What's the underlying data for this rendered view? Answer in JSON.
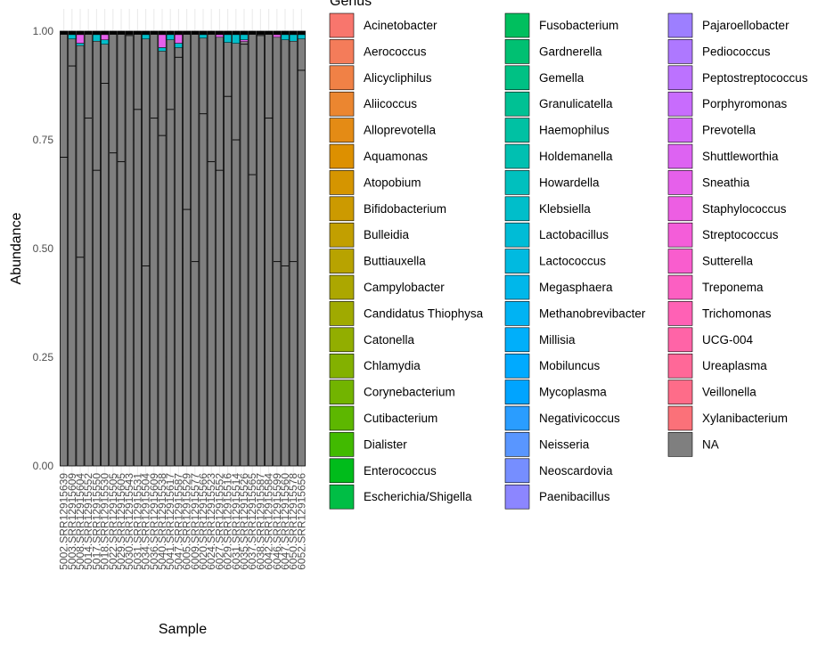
{
  "chart_data": {
    "type": "bar",
    "stacked": true,
    "xlabel": "Sample",
    "ylabel": "Abundance",
    "ylim": [
      0,
      1
    ],
    "yticks": [
      "0.00",
      "0.25",
      "0.50",
      "0.75",
      "1.00"
    ],
    "legend_title": "Genus",
    "legend_position": "right",
    "grid": true,
    "categories": [
      "5002.SRR12915639",
      "5003.SRR12915609",
      "5008.SRR12915604",
      "5014.SRR12915552",
      "5017.SRR12915550",
      "5018.SRR12915530",
      "5022.SRR12915505",
      "5029.SRR12915605",
      "5030.SRR12915543",
      "5031.SRR12915531",
      "5034.SRR12915504",
      "5036.SRR12915609",
      "5040.SRR12915538",
      "5041.SRR12915617",
      "5047.SRR12915587",
      "6005.SRR12915529",
      "6009.SRR12915577",
      "6020.SRR12915566",
      "6024.SRR12915523",
      "6027.SRR12915552",
      "6029.SRR12915516",
      "6031.SRR12915514",
      "6035.SRR12915526",
      "6037.SRR12915565",
      "6038.SRR12915587",
      "6042.SRR12915584",
      "6046.SRR12915599",
      "6047.SRR12915560",
      "6050.SRR12915578",
      "6052.SRR12915656"
    ],
    "na_values": [
      0.71,
      0.92,
      0.48,
      0.8,
      0.68,
      0.88,
      0.72,
      0.7,
      0.99,
      0.82,
      0.46,
      0.8,
      0.76,
      0.82,
      0.94,
      0.59,
      0.47,
      0.81,
      0.7,
      0.68,
      0.85,
      0.75,
      0.97,
      0.67,
      0.99,
      0.8,
      0.47,
      0.46,
      0.47,
      0.91
    ],
    "series": [
      {
        "name": "Acinetobacter",
        "color": "#F8766D"
      },
      {
        "name": "Aerococcus",
        "color": "#F47C5A"
      },
      {
        "name": "Alicycliphilus",
        "color": "#F08146"
      },
      {
        "name": "Aliicoccus",
        "color": "#EB8630"
      },
      {
        "name": "Alloprevotella",
        "color": "#E48B15"
      },
      {
        "name": "Aquamonas",
        "color": "#DD9000"
      },
      {
        "name": "Atopobium",
        "color": "#D59500"
      },
      {
        "name": "Bifidobacterium",
        "color": "#CC9A00"
      },
      {
        "name": "Bulleidia",
        "color": "#C29F00"
      },
      {
        "name": "Buttiauxella",
        "color": "#B8A300"
      },
      {
        "name": "Campylobacter",
        "color": "#ACA700"
      },
      {
        "name": "Candidatus Thiophysa",
        "color": "#A0AA00"
      },
      {
        "name": "Catonella",
        "color": "#92AE00"
      },
      {
        "name": "Chlamydia",
        "color": "#83B100"
      },
      {
        "name": "Corynebacterium",
        "color": "#72B400"
      },
      {
        "name": "Cutibacterium",
        "color": "#5DB700"
      },
      {
        "name": "Dialister",
        "color": "#41BA00"
      },
      {
        "name": "Enterococcus",
        "color": "#00BC1B"
      },
      {
        "name": "Escherichia/Shigella",
        "color": "#00BE45"
      },
      {
        "name": "Fusobacterium",
        "color": "#00BF5E"
      },
      {
        "name": "Gardnerella",
        "color": "#00C072"
      },
      {
        "name": "Gemella",
        "color": "#00C184"
      },
      {
        "name": "Granulicatella",
        "color": "#00C194"
      },
      {
        "name": "Haemophilus",
        "color": "#00C1A3"
      },
      {
        "name": "Holdemanella",
        "color": "#00C0B1"
      },
      {
        "name": "Howardella",
        "color": "#00C0BE"
      },
      {
        "name": "Klebsiella",
        "color": "#00BECA"
      },
      {
        "name": "Lactobacillus",
        "color": "#00BCD6"
      },
      {
        "name": "Lactococcus",
        "color": "#00BAE0"
      },
      {
        "name": "Megasphaera",
        "color": "#00B7EA"
      },
      {
        "name": "Methanobrevibacter",
        "color": "#00B3F3"
      },
      {
        "name": "Millisia",
        "color": "#00AFFA"
      },
      {
        "name": "Mobiluncus",
        "color": "#00AAFF"
      },
      {
        "name": "Mycoplasma",
        "color": "#00A4FF"
      },
      {
        "name": "Negativicoccus",
        "color": "#2A9DFF"
      },
      {
        "name": "Neisseria",
        "color": "#5996FF"
      },
      {
        "name": "Neoscardovia",
        "color": "#768EFF"
      },
      {
        "name": "Paenibacillus",
        "color": "#8C86FF"
      },
      {
        "name": "Pajaroellobacter",
        "color": "#9D7FFF"
      },
      {
        "name": "Pediococcus",
        "color": "#AE78FF"
      },
      {
        "name": "Peptostreptococcus",
        "color": "#BC72FF"
      },
      {
        "name": "Porphyromonas",
        "color": "#C86CFD"
      },
      {
        "name": "Prevotella",
        "color": "#D367F8"
      },
      {
        "name": "Shuttleworthia",
        "color": "#DD63F2"
      },
      {
        "name": "Sneathia",
        "color": "#E660EB"
      },
      {
        "name": "Staphylococcus",
        "color": "#ED5EE3"
      },
      {
        "name": "Streptococcus",
        "color": "#F45DD9"
      },
      {
        "name": "Sutterella",
        "color": "#F95DCE"
      },
      {
        "name": "Treponema",
        "color": "#FC5FC2"
      },
      {
        "name": "Trichomonas",
        "color": "#FF61B5"
      },
      {
        "name": "UCG-004",
        "color": "#FF64A7"
      },
      {
        "name": "Ureaplasma",
        "color": "#FF6898"
      },
      {
        "name": "Veillonella",
        "color": "#FE6C89"
      },
      {
        "name": "Xylanibacterium",
        "color": "#FB7179"
      },
      {
        "name": "NA",
        "color": "#7F7F7F"
      }
    ]
  }
}
